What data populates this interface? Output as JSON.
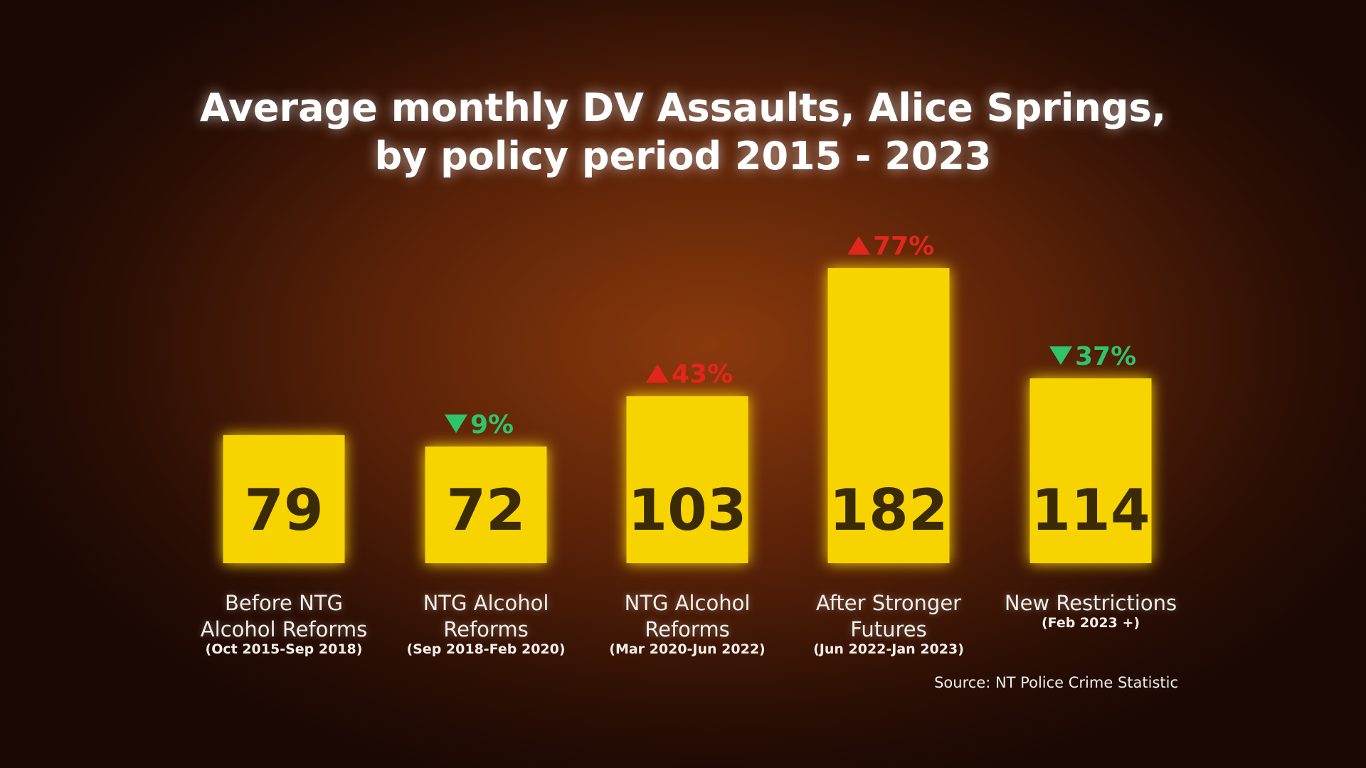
{
  "chart_data": {
    "type": "bar",
    "title": "Average monthly DV Assaults, Alice Springs,\nby policy period 2015 - 2023",
    "categories": [
      "Before NTG\nAlcohol Reforms",
      "NTG Alcohol\nReforms",
      "NTG Alcohol\nReforms",
      "After Stronger\nFutures",
      "New Restrictions"
    ],
    "periods": [
      "(Oct 2015-Sep 2018)",
      "(Sep 2018-Feb 2020)",
      "(Mar 2020-Jun 2022)",
      "(Jun 2022-Jan 2023)",
      "(Feb 2023 +)"
    ],
    "values": [
      79,
      72,
      103,
      182,
      114
    ],
    "changes": [
      null,
      -9,
      43,
      77,
      -37
    ],
    "change_labels": [
      null,
      "9%",
      "43%",
      "77%",
      "37%"
    ],
    "color": "#f7d300",
    "up_color": "#e3261b",
    "down_color": "#2fc46a",
    "source": "Source: NT Police Crime Statistic"
  }
}
